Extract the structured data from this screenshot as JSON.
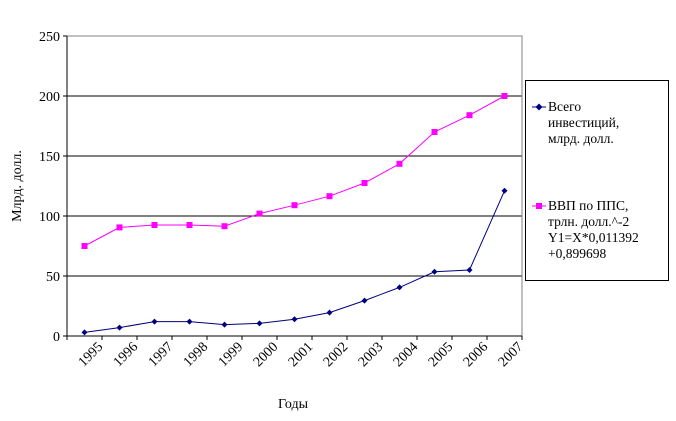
{
  "chart_data": {
    "type": "line",
    "xlabel": "Годы",
    "ylabel": "Млрд. долл.",
    "ylim": [
      0,
      250
    ],
    "yticks": [
      0,
      50,
      100,
      150,
      200,
      250
    ],
    "categories": [
      "1995",
      "1996",
      "1997",
      "1998",
      "1999",
      "2000",
      "2001",
      "2002",
      "2003",
      "2004",
      "2005",
      "2006",
      "2007"
    ],
    "grid": "horizontal",
    "legend_position": "right",
    "series": [
      {
        "name": "Всего инвестиций, млрд. долл.",
        "legend_lines": [
          "Всего",
          "инвестиций,",
          "млрд. долл."
        ],
        "color": "#000080",
        "marker": "diamond",
        "values": [
          3,
          7,
          12,
          12,
          9.5,
          10.5,
          14,
          19.5,
          29.5,
          40.5,
          53.5,
          55,
          121
        ]
      },
      {
        "name": "ВВП по ППС, трлн. долл.^-2 Y1=X*0,011392 +0,899698",
        "legend_lines": [
          "ВВП по ППС,",
          "трлн. долл.^-2",
          "Y1=X*0,011392",
          "+0,899698"
        ],
        "color": "#ff00ff",
        "marker": "square",
        "values": [
          75,
          90.5,
          92.5,
          92.5,
          91.5,
          102,
          109,
          116.5,
          127.5,
          143.5,
          170,
          184,
          200
        ]
      }
    ]
  }
}
